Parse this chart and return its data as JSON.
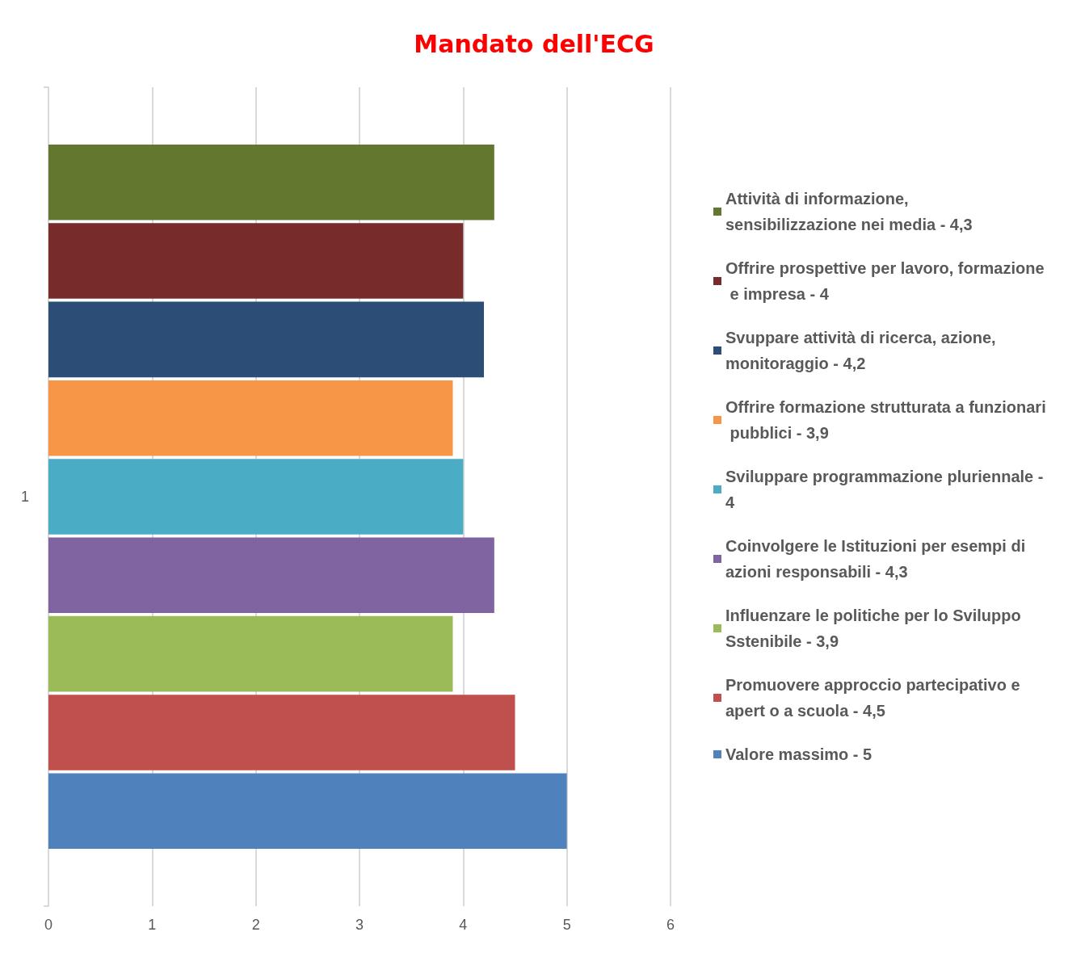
{
  "chart_data": {
    "type": "bar",
    "title": "Mandato dell'ECG",
    "orientation": "horizontal",
    "categories": [
      "1"
    ],
    "series": [
      {
        "name": "Attività di informazione, sensibilizzazione nei media - 4,3",
        "color": "#64772f",
        "values": [
          4.3
        ]
      },
      {
        "name": "Offrire prospettive per lavoro, formazione e impresa - 4",
        "color": "#772b2b",
        "values": [
          4
        ]
      },
      {
        "name": "Svuppare attività di ricerca, azione, monitoraggio - 4,2",
        "color": "#2c4d75",
        "values": [
          4.2
        ]
      },
      {
        "name": "Offrire formazione strutturata a funzionari pubblici - 3,9",
        "color": "#f79646",
        "values": [
          3.9
        ]
      },
      {
        "name": "Sviluppare programmazione pluriennale - 4",
        "color": "#4bacc6",
        "values": [
          4
        ]
      },
      {
        "name": "Coinvolgere le Istituzioni per esempi di azioni responsabili - 4,3",
        "color": "#8064a2",
        "values": [
          4.3
        ]
      },
      {
        "name": "Influenzare le politiche per lo Sviluppo Sstenibile - 3,9",
        "color": "#9bbb59",
        "values": [
          3.9
        ]
      },
      {
        "name": "Promuovere approccio partecipativo e apert o a scuola - 4,5",
        "color": "#c0504d",
        "values": [
          4.5
        ]
      },
      {
        "name": "Valore massimo - 5",
        "color": "#4f81bd",
        "values": [
          5
        ]
      }
    ],
    "xlim": [
      0,
      6
    ],
    "xticks": [
      0,
      1,
      2,
      3,
      4,
      5,
      6
    ],
    "grid": "x",
    "legend": "right"
  }
}
